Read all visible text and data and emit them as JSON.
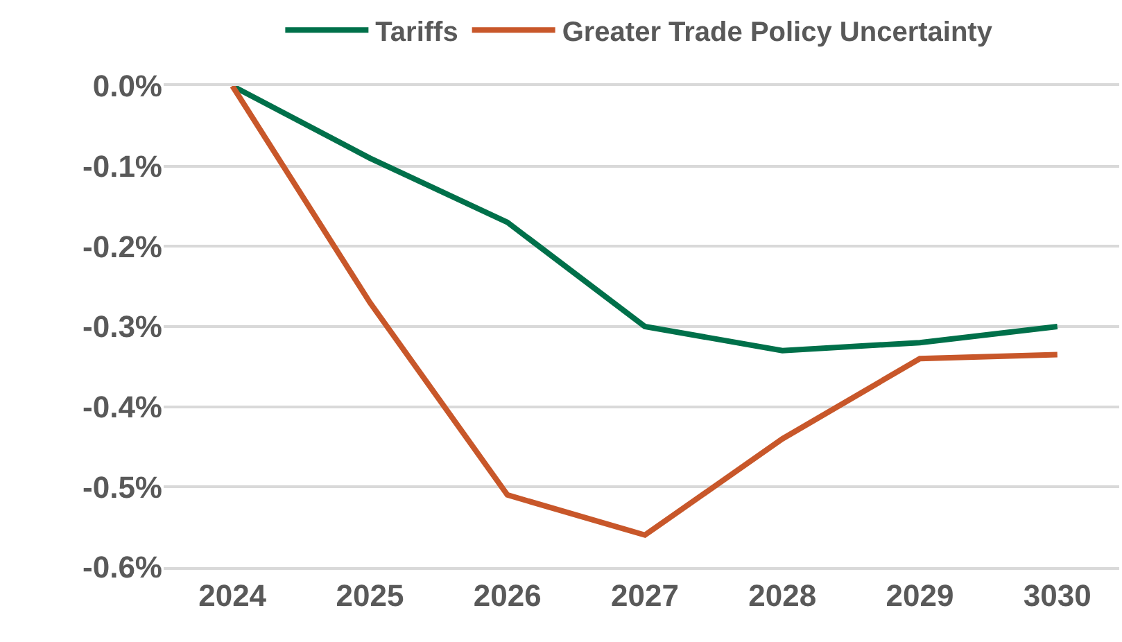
{
  "chart_data": {
    "type": "line",
    "categories": [
      "2024",
      "2025",
      "2026",
      "2027",
      "2028",
      "2029",
      "3030"
    ],
    "series": [
      {
        "name": "Tariffs",
        "color": "#00704a",
        "values": [
          0,
          -0.09,
          -0.17,
          -0.3,
          -0.33,
          -0.32,
          -0.3
        ]
      },
      {
        "name": "Greater Trade Policy Uncertainty",
        "color": "#c8572a",
        "values": [
          0,
          -0.27,
          -0.51,
          -0.56,
          -0.44,
          -0.34,
          -0.335
        ]
      }
    ],
    "ylim": [
      -0.6,
      0
    ],
    "yticks": [
      {
        "value": 0,
        "label": "0.0%"
      },
      {
        "value": -0.1,
        "label": "-0.1%"
      },
      {
        "value": -0.2,
        "label": "-0.2%"
      },
      {
        "value": -0.3,
        "label": "-0.3%"
      },
      {
        "value": -0.4,
        "label": "-0.4%"
      },
      {
        "value": -0.5,
        "label": "-0.5%"
      },
      {
        "value": -0.6,
        "label": "-0.6%"
      }
    ],
    "grid": "y",
    "legend": "top",
    "marker": "none",
    "line_style": "solid"
  }
}
